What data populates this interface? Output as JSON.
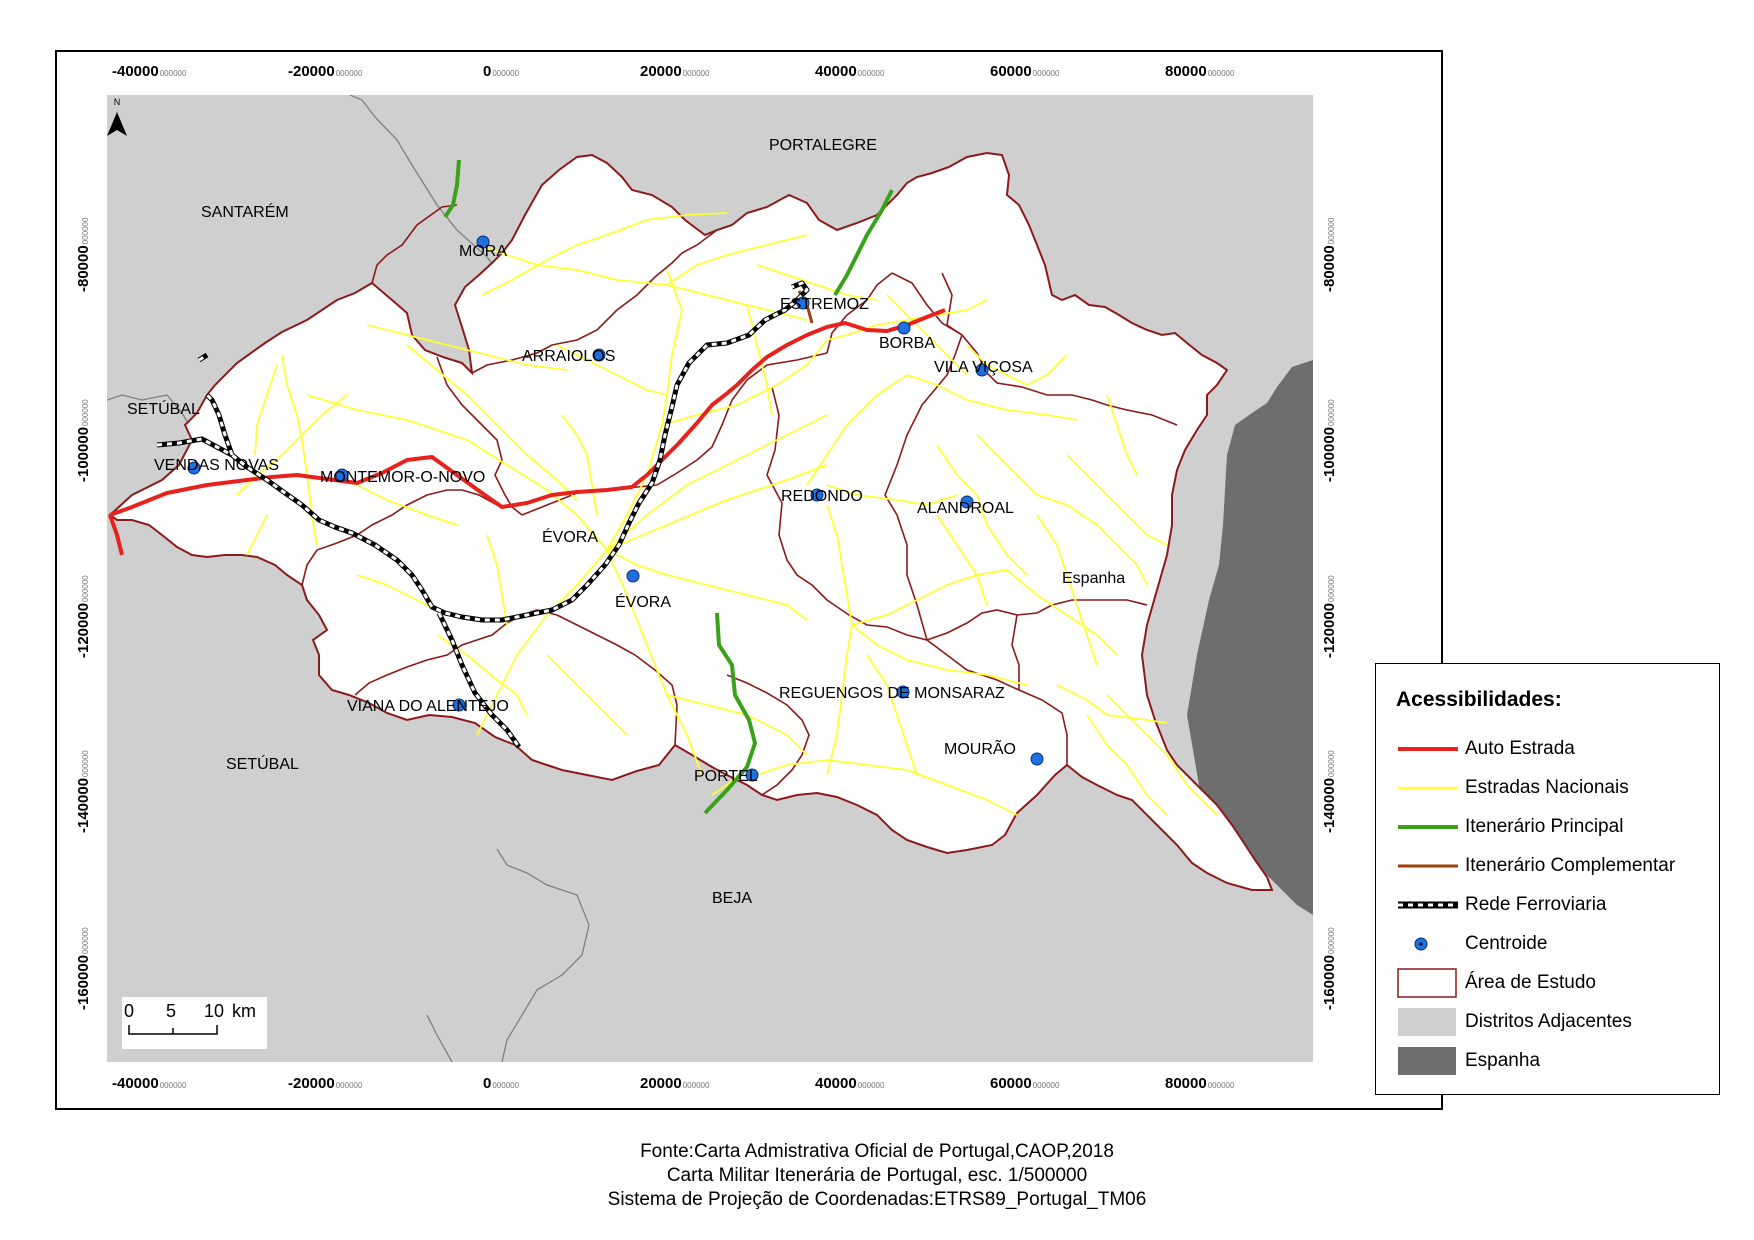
{
  "map": {
    "x_ticks": [
      {
        "label": "-40000",
        "dec": "000000"
      },
      {
        "label": "-20000",
        "dec": "000000"
      },
      {
        "label": "0",
        "dec": "000000"
      },
      {
        "label": "20000",
        "dec": "000000"
      },
      {
        "label": "40000",
        "dec": "000000"
      },
      {
        "label": "60000",
        "dec": "000000"
      },
      {
        "label": "80000",
        "dec": "000000"
      }
    ],
    "y_ticks": [
      {
        "label": "-80000",
        "dec": "000000"
      },
      {
        "label": "-100000",
        "dec": "000000"
      },
      {
        "label": "-120000",
        "dec": "000000"
      },
      {
        "label": "-140000",
        "dec": "000000"
      },
      {
        "label": "-160000",
        "dec": "000000"
      }
    ],
    "north_label": "N",
    "districts": {
      "santarem": "SANTARÉM",
      "portalegre": "PORTALEGRE",
      "setubal_north": "SETÚBAL",
      "setubal_south": "SETÚBAL",
      "beja": "BEJA",
      "espanha": "Espanha"
    },
    "places": {
      "mora": "MORA",
      "estremoz": "ESTREMOZ",
      "borba": "BORBA",
      "arraiolos": "ARRAIOLOS",
      "vila_vicosa": "VILA VIÇOSA",
      "vendas_novas": "VENDAS NOVAS",
      "montemor": "MONTEMOR-O-NOVO",
      "redondo": "REDONDO",
      "alandroal": "ALANDROAL",
      "evora_city": "ÉVORA",
      "evora_mun": "ÉVORA",
      "reguengos": "REGUENGOS DE MONSARAZ",
      "viana": "VIANA DO ALENTEJO",
      "mourao": "MOURÃO",
      "portel": "PORTEL"
    },
    "scale_labels": [
      "0",
      "5",
      "10",
      "km"
    ],
    "colors": {
      "study_area": "#ffffff",
      "study_border": "#8b1a1a",
      "adjacent": "#cfcfcf",
      "spain": "#6e6e6e",
      "auto_estrada": "#e8211c",
      "estradas_nacionais": "#ffff33",
      "itenerario_principal": "#3aa11b",
      "itenerario_complementar": "#a0410d",
      "centroide": "#1f6fe0"
    }
  },
  "legend": {
    "title": "Acessibilidades:",
    "items": [
      {
        "label": "Auto Estrada",
        "icon": "red-line"
      },
      {
        "label": "Estradas Nacionais",
        "icon": "yellow-line"
      },
      {
        "label": "Itenerário Principal",
        "icon": "green-line"
      },
      {
        "label": "Itenerário Complementar",
        "icon": "brown-line"
      },
      {
        "label": "Rede Ferroviaria",
        "icon": "railway-line"
      },
      {
        "label": "Centroide",
        "icon": "centroid-dot"
      },
      {
        "label": "Área de Estudo",
        "icon": "study-area-box"
      },
      {
        "label": "Distritos Adjacentes",
        "icon": "grey-box"
      },
      {
        "label": "Espanha",
        "icon": "dark-box"
      }
    ]
  },
  "source": {
    "line1": "Fonte:Carta Admistrativa Oficial de Portugal,CAOP,2018",
    "line2": "Carta Militar Itenerária de Portugal, esc. 1/500000",
    "line3": "Sistema de Projeção de Coordenadas:ETRS89_Portugal_TM06"
  }
}
